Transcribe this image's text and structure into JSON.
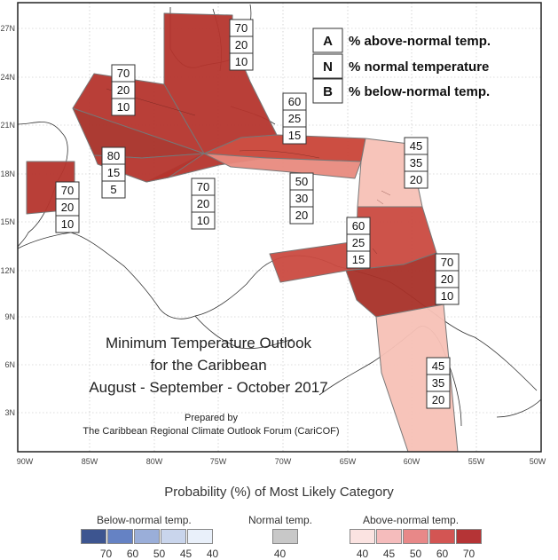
{
  "axes": {
    "lon_labels": [
      "90W",
      "85W",
      "80W",
      "75W",
      "70W",
      "65W",
      "60W",
      "55W",
      "50W"
    ],
    "lat_labels": [
      "27N",
      "24N",
      "21N",
      "18N",
      "15N",
      "12N",
      "9N",
      "6N",
      "3N"
    ]
  },
  "key": [
    {
      "letter": "A",
      "text": "% above-normal temp."
    },
    {
      "letter": "N",
      "text": "% normal temperature"
    },
    {
      "letter": "B",
      "text": "% below-normal temp."
    }
  ],
  "regions": [
    {
      "name": "bahamas",
      "a": "70",
      "n": "20",
      "b": "10",
      "color": "#b5352d"
    },
    {
      "name": "cuba",
      "a": "70",
      "n": "20",
      "b": "10",
      "color": "#b5352d"
    },
    {
      "name": "hispaniola",
      "a": "60",
      "n": "25",
      "b": "15",
      "color": "#ca4a40"
    },
    {
      "name": "west-caribbean",
      "a": "80",
      "n": "15",
      "b": "5",
      "color": "#b5352d"
    },
    {
      "name": "belize",
      "a": "70",
      "n": "20",
      "b": "10",
      "color": "#b5352d"
    },
    {
      "name": "jamaica",
      "a": "70",
      "n": "20",
      "b": "10",
      "color": "#b5352d"
    },
    {
      "name": "puerto-rico",
      "a": "50",
      "n": "30",
      "b": "20",
      "color": "#e88a7e"
    },
    {
      "name": "leeward",
      "a": "45",
      "n": "35",
      "b": "20",
      "color": "#f7c1b6"
    },
    {
      "name": "windward",
      "a": "60",
      "n": "25",
      "b": "15",
      "color": "#ca4a40"
    },
    {
      "name": "trinidad",
      "a": "70",
      "n": "20",
      "b": "10",
      "color": "#b5352d"
    },
    {
      "name": "guianas",
      "a": "45",
      "n": "35",
      "b": "20",
      "color": "#f7c1b6"
    }
  ],
  "title": {
    "line1": "Minimum Temperature Outlook",
    "line2": "for the Caribbean",
    "line3": "August - September - October 2017",
    "prepared": "Prepared by",
    "forum": "The Caribbean Regional Climate Outlook Forum (CariCOF)"
  },
  "legend": {
    "title": "Probability (%) of Most Likely Category",
    "below": {
      "label": "Below-normal temp.",
      "values": [
        "70",
        "60",
        "50",
        "45",
        "40"
      ],
      "colors": [
        "#3d5590",
        "#6582c4",
        "#9aaed9",
        "#c9d5ec",
        "#e9f0fa"
      ]
    },
    "normal": {
      "label": "Normal temp.",
      "values": [
        "40"
      ],
      "colors": [
        "#c8c8c8"
      ]
    },
    "above": {
      "label": "Above-normal temp.",
      "values": [
        "40",
        "45",
        "50",
        "60",
        "70"
      ],
      "colors": [
        "#fbe3e1",
        "#f5bcbc",
        "#e88888",
        "#d35553",
        "#b53436"
      ]
    }
  }
}
